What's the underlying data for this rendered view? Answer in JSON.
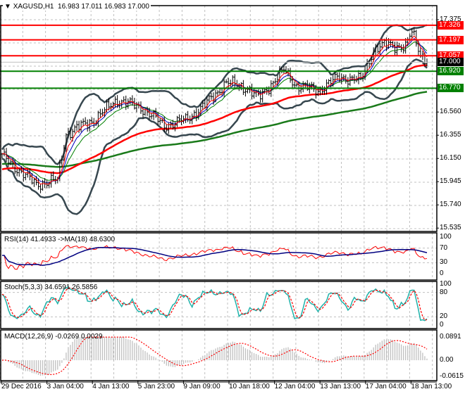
{
  "header": {
    "symbol": "XAGUSD,H1",
    "ohlc": "16.983 17.011 16.983 17.000",
    "menu_icon": "triangle-down-icon"
  },
  "chart_data": [
    {
      "type": "line",
      "title": "XAGUSD,H1",
      "series_kind": "ohlc-bars",
      "bars": 200,
      "close_anchors": [
        [
          0,
          16.17
        ],
        [
          16,
          15.92
        ],
        [
          26,
          15.96
        ],
        [
          30,
          16.37
        ],
        [
          43,
          16.49
        ],
        [
          54,
          16.67
        ],
        [
          66,
          16.59
        ],
        [
          76,
          16.44
        ],
        [
          86,
          16.49
        ],
        [
          95,
          16.62
        ],
        [
          105,
          16.82
        ],
        [
          115,
          16.77
        ],
        [
          120,
          16.68
        ],
        [
          132,
          16.93
        ],
        [
          138,
          16.79
        ],
        [
          148,
          16.75
        ],
        [
          158,
          16.87
        ],
        [
          168,
          16.84
        ],
        [
          174,
          17.11
        ],
        [
          181,
          17.16
        ],
        [
          189,
          17.13
        ],
        [
          192,
          17.27
        ],
        [
          196,
          17.08
        ],
        [
          199,
          17.0
        ]
      ],
      "ylim": [
        15.535,
        17.375
      ],
      "y_ticks": [
        "17.375",
        "16.560",
        "16.355",
        "16.150",
        "15.945",
        "15.740",
        "15.535"
      ],
      "ma_slow_start": 16.05,
      "ma_longest_start": 16.1,
      "levels": [
        {
          "value": "17.326",
          "color": "#ff0000"
        },
        {
          "value": "17.197",
          "color": "#ff0000"
        },
        {
          "value": "17.057",
          "color": "#ff0000"
        },
        {
          "value": "16.920",
          "color": "#008000"
        },
        {
          "value": "16.770",
          "color": "#008000"
        }
      ],
      "current_price": "17.000",
      "x_ticks": [
        "29 Dec 2016",
        "3 Jan 04:00",
        "4 Jan 13:00",
        "5 Jan 23:00",
        "9 Jan 09:00",
        "10 Jan 18:00",
        "12 Jan 04:00",
        "13 Jan 13:00",
        "17 Jan 04:00",
        "18 Jan 13:00"
      ]
    },
    {
      "type": "line",
      "title": "RSI(14) 41.4933  ->MA(18) 48.6300",
      "ylim": [
        0,
        100
      ],
      "y_ticks": [
        "100",
        "70",
        "30",
        "0"
      ]
    },
    {
      "type": "line",
      "title": "Stoch(5,3,3) 34.6591 26.5856",
      "ylim": [
        0,
        100
      ],
      "y_ticks": [
        "100",
        "80",
        "20",
        "0"
      ]
    },
    {
      "type": "bar",
      "title": "MACD(12,26,9) -0.0269 0.0029",
      "ylim": [
        -0.0615,
        0.0891
      ],
      "y_ticks": [
        "0.0891",
        "0.00",
        "-0.0615"
      ]
    }
  ],
  "colors": {
    "bull_bear": "#000000",
    "level_red": "#ff0000",
    "level_green": "#008000",
    "bands": "#37474f",
    "ma_red": "#ff0000",
    "ma_green": "#1a7a1a",
    "rsi": "#ff0000",
    "rsi_ma": "#000080",
    "stoch_k": "#20b2aa",
    "stoch_d": "#ff0000",
    "macd_hist": "#c0c0c0",
    "macd_signal": "#ff0000"
  }
}
